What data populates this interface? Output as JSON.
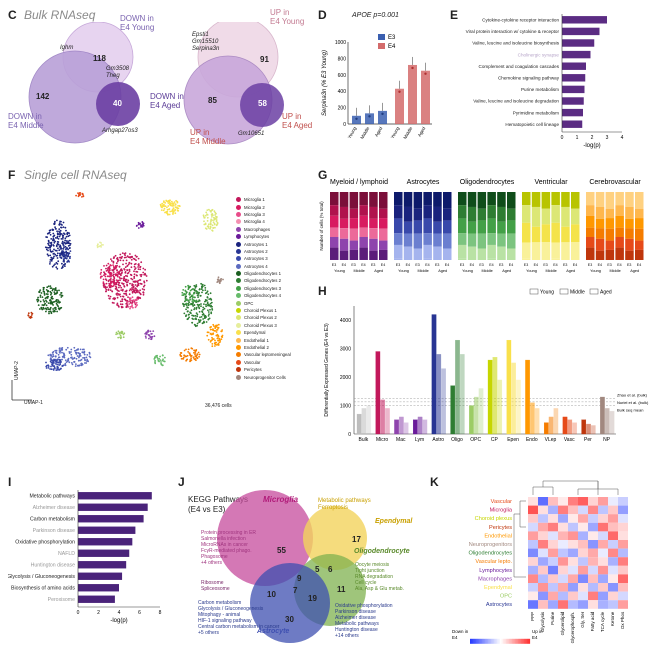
{
  "panel_letters": {
    "c": "C",
    "d": "D",
    "e": "E",
    "f": "F",
    "g": "G",
    "h": "H",
    "i": "I",
    "j": "J",
    "k": "K"
  },
  "panel_c": {
    "title": "Bulk RNAseq",
    "left": {
      "down_e4_young": "DOWN in\nE4 Young",
      "down_e4_middle": "DOWN in\nE4 Middle",
      "down_e4_aged": "DOWN in\nE4 Aged",
      "n_young": "118",
      "n_middle": "142",
      "n_aged": "40",
      "genes_top": "Ighm",
      "genes_mid": "Gm3508\nTheg",
      "genes_bottom": "Arhgap27os3"
    },
    "right": {
      "up_e4_young": "UP in\nE4 Young",
      "up_e4_middle": "UP in\nE4 Middle",
      "up_e4_aged": "UP in\nE4 Aged",
      "n_young": "91",
      "n_middle": "85",
      "n_aged": "58",
      "genes_top": "Epsti1\nGm15510\nSerpina3n",
      "genes_bottom": "Gm10651"
    }
  },
  "panel_d": {
    "title": "APOE p=0.001",
    "legend": [
      "E3",
      "E4"
    ],
    "ylabel": "Serpina3n (% E3 Young)",
    "yticks": [
      "0",
      "200",
      "400",
      "600",
      "800",
      "1000"
    ],
    "categories": [
      "Young",
      "Middle",
      "Aged",
      "Young",
      "Middle",
      "Aged"
    ],
    "chart_data": {
      "type": "bar",
      "categories": [
        "Young",
        "Middle",
        "Aged"
      ],
      "series": [
        {
          "name": "E3",
          "values": [
            100,
            130,
            160
          ],
          "color": "#3a5fb0"
        },
        {
          "name": "E4",
          "values": [
            430,
            720,
            650
          ],
          "color": "#d36b6b"
        }
      ],
      "ylim": [
        0,
        1000
      ]
    }
  },
  "panel_e": {
    "chart_data": {
      "type": "bar",
      "orientation": "horizontal",
      "categories": [
        "Cytokine-cytokine receptor interaction",
        "Viral protein interaction w/ cytokine & receptor",
        "Valine, leucine and isoleucine biosynthesis",
        "Cholinergic synapse",
        "Complement and coagulation cascades",
        "Chemokine signaling pathway",
        "Purine metabolism",
        "Valine, leucine and isoleucine degradation",
        "Pyrimidine metabolism",
        "Hematopoietic cell lineage"
      ],
      "values": [
        3.0,
        2.5,
        2.15,
        1.9,
        1.6,
        1.55,
        1.5,
        1.45,
        1.4,
        1.35
      ],
      "muted": [
        false,
        false,
        false,
        true,
        false,
        false,
        false,
        false,
        false,
        false
      ],
      "xlabel": "-log(p)",
      "xticks": [
        "0",
        "1",
        "2",
        "3",
        "4"
      ],
      "xlim": [
        0,
        4
      ]
    }
  },
  "panel_f": {
    "title": "Single cell RNAseq",
    "axis_y": "UMAP-2",
    "axis_x": "UMAP-1",
    "cells": "36,476 cells",
    "legend": [
      {
        "label": "Microglia 1",
        "color": "#c2185b"
      },
      {
        "label": "Microglia 2",
        "color": "#d81b60"
      },
      {
        "label": "Microglia 3",
        "color": "#e84c8a"
      },
      {
        "label": "Microglia 4",
        "color": "#f48fb1"
      },
      {
        "label": "Macrophages",
        "color": "#8e44ad"
      },
      {
        "label": "Lymphocytes",
        "color": "#6a1b9a"
      },
      {
        "label": "Astrocytes 1",
        "color": "#1a237e"
      },
      {
        "label": "Astrocytes 2",
        "color": "#283593"
      },
      {
        "label": "Astrocytes 3",
        "color": "#3949ab"
      },
      {
        "label": "Astrocytes 4",
        "color": "#5c6bc0"
      },
      {
        "label": "Oligodendrocytes 1",
        "color": "#1b5e20"
      },
      {
        "label": "Oligodendrocytes 2",
        "color": "#2e7d32"
      },
      {
        "label": "Oligodendrocytes 3",
        "color": "#43a047"
      },
      {
        "label": "Oligodendrocytes 4",
        "color": "#66bb6a"
      },
      {
        "label": "OPC",
        "color": "#9ccc65"
      },
      {
        "label": "Choroid Plexus 1",
        "color": "#c6d600"
      },
      {
        "label": "Choroid Plexus 2",
        "color": "#dce775"
      },
      {
        "label": "Choroid Plexus 3",
        "color": "#e6ee9c"
      },
      {
        "label": "Ependymal",
        "color": "#f9e04b"
      },
      {
        "label": "Endothelial 1",
        "color": "#ffb74d"
      },
      {
        "label": "Endothelial 2",
        "color": "#ff9800"
      },
      {
        "label": "Vascular leptomeningeal",
        "color": "#f57c00"
      },
      {
        "label": "Vascular",
        "color": "#e64a19"
      },
      {
        "label": "Pericytes",
        "color": "#bf360c"
      },
      {
        "label": "Neuroprogenitor Cells",
        "color": "#a1887f"
      }
    ]
  },
  "panel_g": {
    "ylabel": "Number of cells (% total)",
    "groups": [
      {
        "title": "Myeloid / lymphoid",
        "colors": [
          "#7b0f3a",
          "#b0124d",
          "#d81b60",
          "#ec6a9a",
          "#8e44ad",
          "#5b1c7a"
        ]
      },
      {
        "title": "Astrocytes",
        "colors": [
          "#0d1a6b",
          "#1a237e",
          "#3949ab",
          "#6b7fd0",
          "#a5b4ee"
        ]
      },
      {
        "title": "Oligodendrocytes",
        "colors": [
          "#0f4d1a",
          "#2e7d32",
          "#43a047",
          "#7cc47f",
          "#b9e2a4"
        ]
      },
      {
        "title": "Ventricular",
        "colors": [
          "#b8c400",
          "#dce775",
          "#f4e34a",
          "#f9f19a"
        ]
      },
      {
        "title": "Cerebrovascular",
        "colors": [
          "#ffd180",
          "#ffb74d",
          "#ff9800",
          "#f57c00",
          "#e64a19",
          "#bf360c"
        ]
      }
    ],
    "xlabels": [
      "E3",
      "E4",
      "E3",
      "E4",
      "E3",
      "E4"
    ],
    "ages": [
      "Young",
      "Middle",
      "Aged"
    ]
  },
  "panel_h": {
    "legend": [
      "Young",
      "Middle",
      "Aged"
    ],
    "ylabel": "Differentially Expressed Genes (E4 vs E3)",
    "yticks": [
      "0",
      "1000",
      "2000",
      "3000",
      "4000"
    ],
    "ref_lines": [
      "Zhao et al. (bulk)",
      "Nuriel et al. (bulk)",
      "Bulk seq mean"
    ],
    "chart_data": {
      "type": "bar",
      "categories": [
        "Bulk",
        "Micro",
        "Mac",
        "Lym",
        "Astro",
        "Oligo",
        "OPC",
        "CP",
        "Epen",
        "Endo",
        "VLep",
        "Vasc",
        "Per",
        "NP"
      ],
      "series": [
        {
          "name": "Young",
          "values": [
            700,
            2900,
            500,
            500,
            4200,
            1700,
            1000,
            2600,
            3300,
            2600,
            400,
            600,
            500,
            1300
          ]
        },
        {
          "name": "Middle",
          "values": [
            900,
            1200,
            600,
            600,
            2800,
            3300,
            1300,
            2700,
            2500,
            1100,
            600,
            500,
            350,
            900
          ]
        },
        {
          "name": "Aged",
          "values": [
            1000,
            900,
            400,
            500,
            2300,
            2800,
            1600,
            1900,
            1900,
            900,
            900,
            400,
            300,
            800
          ]
        }
      ],
      "colors": [
        "#bdbdbd",
        "#c2185b",
        "#8e44ad",
        "#6a1b9a",
        "#283593",
        "#2e7d32",
        "#9ccc65",
        "#c6d600",
        "#f9e04b",
        "#ff9800",
        "#f57c00",
        "#e64a19",
        "#bf360c",
        "#a1887f"
      ],
      "ylim": [
        0,
        4500
      ]
    }
  },
  "panel_i": {
    "chart_data": {
      "type": "bar",
      "orientation": "horizontal",
      "categories": [
        "Metabolic pathways",
        "Alzheimer disease",
        "Carbon metabolism",
        "Parkinson disease",
        "Oxidative phosphorylation",
        "NAFLD",
        "Huntington disease",
        "Glycolysis / Gluconeogenesis",
        "Biosynthesis of amino acids",
        "Peroxisome"
      ],
      "values": [
        7.2,
        6.8,
        6.4,
        5.6,
        5.3,
        5.0,
        4.7,
        4.3,
        4.0,
        3.6
      ],
      "muted": [
        false,
        true,
        false,
        true,
        false,
        true,
        true,
        false,
        false,
        true
      ],
      "xlabel": "-log(p)",
      "xticks": [
        "0",
        "2",
        "4",
        "6",
        "8"
      ],
      "xlim": [
        0,
        8
      ]
    }
  },
  "panel_j": {
    "title": "KEGG Pathways\n(E4 vs E3)",
    "sets": [
      "Microglia",
      "Ependymal",
      "Oligodendrocyte",
      "Astrocyte"
    ],
    "counts": {
      "micro_only": "55",
      "epen_only": "17",
      "oligo_only": "11",
      "astro_only": "30",
      "me": "5",
      "mo": "9",
      "eo": "6",
      "ma": "10",
      "all": "7",
      "ao": "19"
    },
    "micro_terms": "Protein processing in ER\nSalmonella infection\nMicroRNAs in cancer\nFcγR-mediated phago.\nPhagosome\n+4 others",
    "micro_top": "Metabolic pathways\nFerroptosis",
    "ribo": "Ribosome\nSpliceosome",
    "oligo_terms": "Oocyte meiosis\nTight junction\nRNA degradation\nCell cycle\nAla, Asp & Glu metab.",
    "astro_terms": "Carbon metabolism\nGlycolysis / Gluconeogenesis\nMitophagy - animal\nHIF-1 signaling pathway\nCentral carbon metabolism in cancer\n+5 others",
    "ao_terms": "Oxidative phosphorylation\nParkinson disease\nAlzheimer disease\nMetabolic pathways\nHuntington disease\n+14 others"
  },
  "panel_k": {
    "rows": [
      {
        "label": "Vascular",
        "color": "#e64a19"
      },
      {
        "label": "Microglia",
        "color": "#c2185b"
      },
      {
        "label": "Choroid plexus",
        "color": "#c6d600"
      },
      {
        "label": "Pericytes",
        "color": "#bf360c"
      },
      {
        "label": "Endothelial",
        "color": "#ff9800"
      },
      {
        "label": "Neuroprogenitors",
        "color": "#a1887f"
      },
      {
        "label": "Oligodendrocytes",
        "color": "#2e7d32"
      },
      {
        "label": "Vascular lepto.",
        "color": "#f57c00"
      },
      {
        "label": "Lymphocytes",
        "color": "#6a1b9a"
      },
      {
        "label": "Macrophages",
        "color": "#8e44ad"
      },
      {
        "label": "Ependymal",
        "color": "#f9e04b"
      },
      {
        "label": "OPC",
        "color": "#9ccc65"
      },
      {
        "label": "Astrocytes",
        "color": "#283593"
      }
    ],
    "cols": [
      "PPP",
      "Glycolysis",
      "Purine",
      "Glycerolipid",
      "Glycerophosph.",
      "Gly, Ser",
      "Fatty acid",
      "TCA cycle",
      "Ketone",
      "Ox Phos"
    ],
    "values": [
      [
        0.3,
        -1.5,
        0.6,
        0.2,
        1.2,
        1.5,
        0.4,
        0.9,
        -0.2,
        -0.5
      ],
      [
        1.6,
        0.3,
        -0.8,
        1.2,
        0.6,
        -0.4,
        1.1,
        -0.6,
        0.5,
        -1.0
      ],
      [
        0.5,
        -0.6,
        0.3,
        -0.9,
        0.2,
        0.8,
        -0.5,
        0.4,
        0.9,
        -0.3
      ],
      [
        -0.4,
        0.8,
        1.2,
        0.3,
        -0.6,
        0.2,
        -0.9,
        1.3,
        0.6,
        0.4
      ],
      [
        0.9,
        0.4,
        -0.3,
        0.7,
        1.0,
        -0.8,
        0.2,
        -0.4,
        1.4,
        0.3
      ],
      [
        -0.6,
        1.2,
        0.4,
        -0.2,
        0.3,
        0.6,
        -1.1,
        0.8,
        -0.5,
        0.9
      ],
      [
        -1.2,
        -0.3,
        0.9,
        -0.6,
        -0.9,
        0.4,
        0.8,
        -0.2,
        1.1,
        -0.7
      ],
      [
        0.4,
        -0.9,
        -0.5,
        1.0,
        0.3,
        -0.6,
        0.7,
        0.3,
        -0.8,
        1.2
      ],
      [
        -0.8,
        0.5,
        -1.3,
        0.4,
        -0.3,
        0.9,
        -0.4,
        1.0,
        -0.3,
        0.5
      ],
      [
        1.1,
        -0.7,
        0.5,
        -0.4,
        0.8,
        -1.2,
        0.6,
        -0.9,
        0.2,
        1.4
      ],
      [
        -0.5,
        1.0,
        -0.6,
        0.8,
        -1.0,
        0.3,
        -0.7,
        0.5,
        -1.1,
        0.6
      ],
      [
        0.2,
        -1.1,
        0.8,
        -0.7,
        0.5,
        -0.3,
        1.2,
        -1.0,
        0.4,
        -0.4
      ],
      [
        -1.4,
        0.6,
        -0.9,
        1.3,
        -0.7,
        -1.0,
        0.3,
        -0.8,
        -0.6,
        0.9
      ]
    ],
    "legend_down": "Down in\nE4",
    "legend_up": "Up in\nE4",
    "legend_axis": "log₂(FC)",
    "legend_min": "-2",
    "legend_max": "2"
  }
}
